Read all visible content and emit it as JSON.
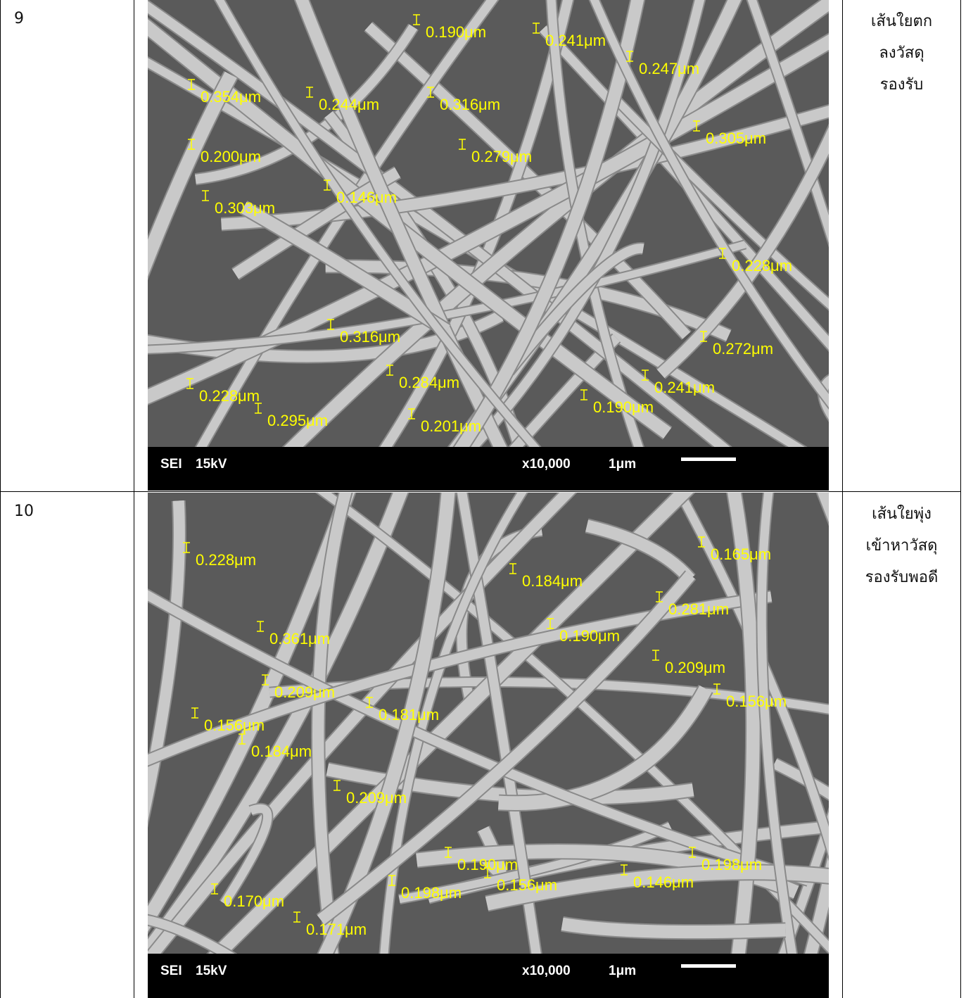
{
  "table": {
    "rows": [
      {
        "number": "9",
        "image": {
          "labels": [
            "0.190μm",
            "0.241μm",
            "0.247μm",
            "0.354μm",
            "0.244μm",
            "0.316μm",
            "0.305μm",
            "0.200μm",
            "0.279μm",
            "0.146μm",
            "0.303μm",
            "0.228μm",
            "0.316μm",
            "0.272μm",
            "0.284μm",
            "0.241μm",
            "0.228μm",
            "0.190μm",
            "0.295μm",
            "0.201μm"
          ],
          "footer": {
            "mode": "SEI",
            "voltage": "15kV",
            "magnification": "x10,000",
            "scale": "1μm"
          }
        },
        "description": [
          "เส้นใยตก",
          "ลงวัสดุ",
          "รองรับ"
        ]
      },
      {
        "number": "10",
        "image": {
          "labels": [
            "0.228μm",
            "0.165μm",
            "0.184μm",
            "0.281μm",
            "0.361μm",
            "0.190μm",
            "0.209μm",
            "0.209μm",
            "0.156μm",
            "0.181μm",
            "0.156μm",
            "0.184μm",
            "0.209μm",
            "0.190μm",
            "0.198μm",
            "0.156μm",
            "0.198μm",
            "0.146μm",
            "0.170μm",
            "0.171μm"
          ],
          "footer": {
            "mode": "SEI",
            "voltage": "15kV",
            "magnification": "x10,000",
            "scale": "1μm"
          }
        },
        "description": [
          "เส้นใยพุ่ง",
          "เข้าหาวัสดุ",
          "รองรับพอดี"
        ]
      }
    ]
  }
}
